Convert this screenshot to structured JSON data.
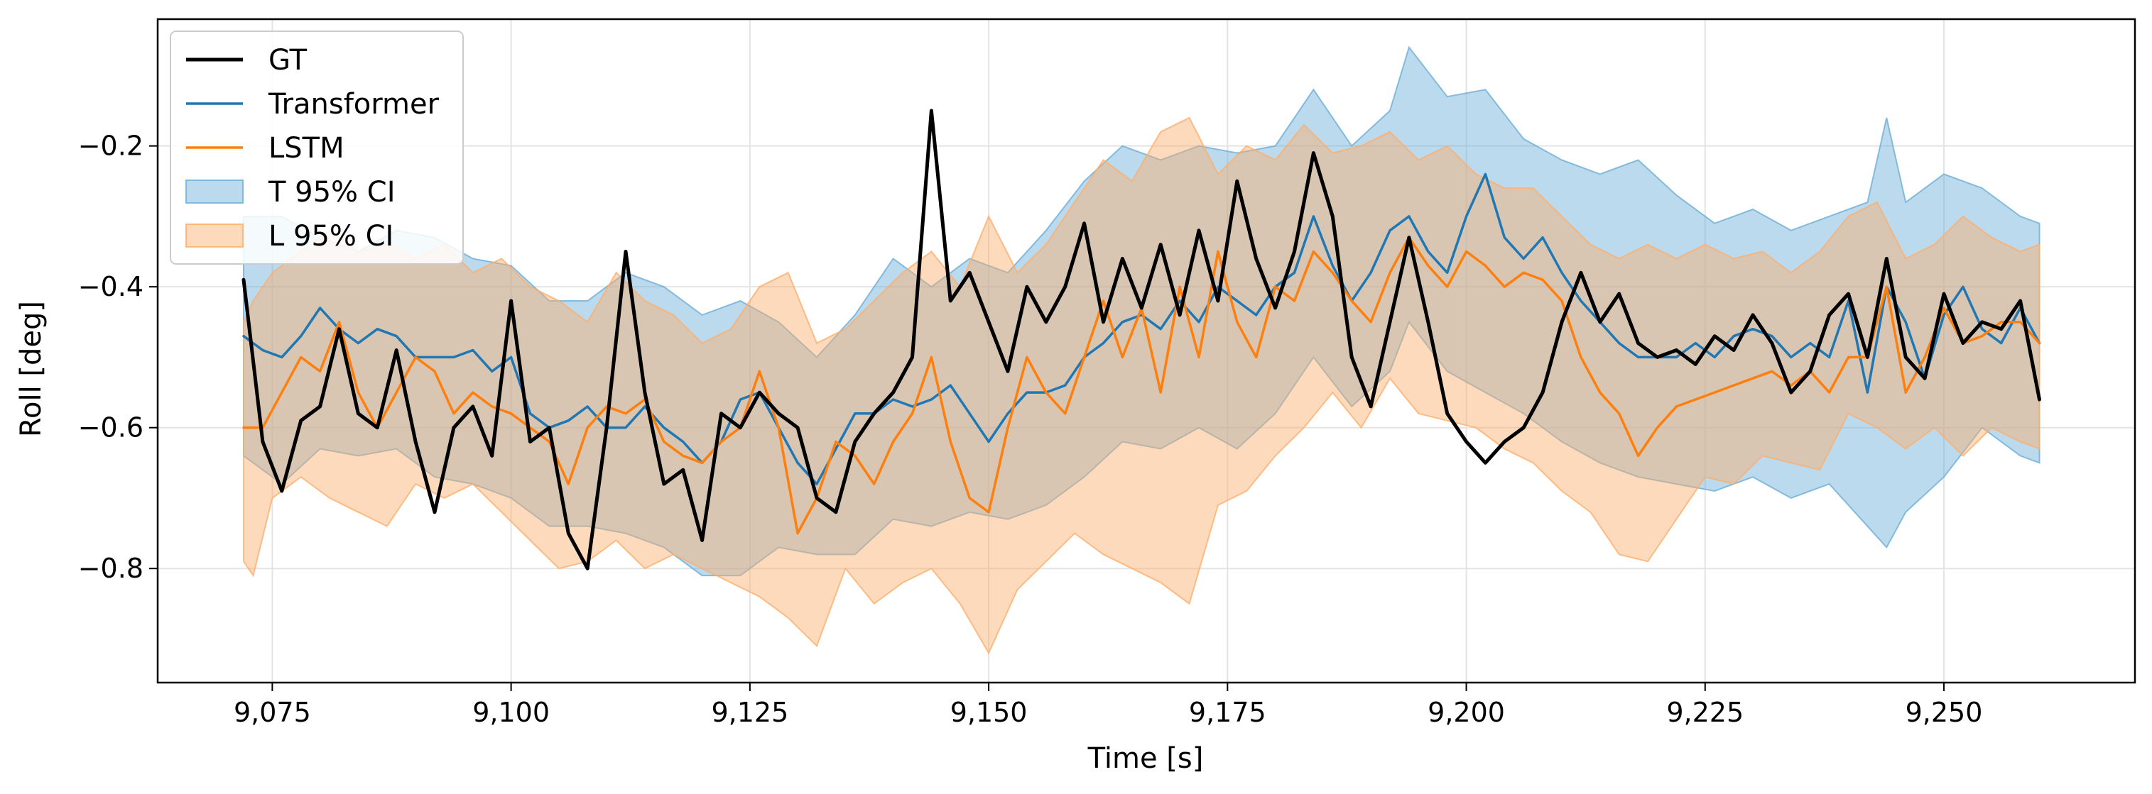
{
  "chart_data": {
    "type": "line",
    "title": "",
    "xlabel": "Time [s]",
    "ylabel": "Roll [deg]",
    "xlim": [
      9063,
      9270
    ],
    "ylim": [
      -0.962,
      -0.02
    ],
    "grid": true,
    "legend_position": "top-left",
    "x_ticks": [
      9075,
      9100,
      9125,
      9150,
      9175,
      9200,
      9225,
      9250
    ],
    "x_tick_labels": [
      "9,075",
      "9,100",
      "9,125",
      "9,150",
      "9,175",
      "9,200",
      "9,225",
      "9,250"
    ],
    "y_ticks": [
      -0.2,
      -0.4,
      -0.6,
      -0.8
    ],
    "y_tick_labels": [
      "−0.2",
      "−0.4",
      "−0.6",
      "−0.8"
    ],
    "colors": {
      "gt": "#000000",
      "transformer": "#1f77b4",
      "lstm": "#ff7f0e",
      "t_band_fill": "#6baed6",
      "l_band_fill": "#fdae6b"
    },
    "legend": [
      {
        "key": "gt",
        "label": "GT",
        "kind": "line"
      },
      {
        "key": "transformer",
        "label": "Transformer",
        "kind": "line"
      },
      {
        "key": "lstm",
        "label": "LSTM",
        "kind": "line"
      },
      {
        "key": "t_band",
        "label": "T 95% CI",
        "kind": "band"
      },
      {
        "key": "l_band",
        "label": "L 95% CI",
        "kind": "band"
      }
    ],
    "series": [
      {
        "name": "GT",
        "key": "gt",
        "x": [
          9072,
          9074,
          9076,
          9078,
          9080,
          9082,
          9084,
          9086,
          9088,
          9090,
          9092,
          9094,
          9096,
          9098,
          9100,
          9102,
          9104,
          9106,
          9108,
          9110,
          9112,
          9114,
          9116,
          9118,
          9120,
          9122,
          9124,
          9126,
          9128,
          9130,
          9132,
          9134,
          9136,
          9138,
          9140,
          9142,
          9144,
          9146,
          9148,
          9150,
          9152,
          9154,
          9156,
          9158,
          9160,
          9162,
          9164,
          9166,
          9168,
          9170,
          9172,
          9174,
          9176,
          9178,
          9180,
          9182,
          9184,
          9186,
          9188,
          9190,
          9192,
          9194,
          9196,
          9198,
          9200,
          9202,
          9204,
          9206,
          9208,
          9210,
          9212,
          9214,
          9216,
          9218,
          9220,
          9222,
          9224,
          9226,
          9228,
          9230,
          9232,
          9234,
          9236,
          9238,
          9240,
          9242,
          9244,
          9246,
          9248,
          9250,
          9252,
          9254,
          9256,
          9258,
          9260
        ],
        "values": [
          -0.39,
          -0.62,
          -0.69,
          -0.59,
          -0.57,
          -0.46,
          -0.58,
          -0.6,
          -0.49,
          -0.62,
          -0.72,
          -0.6,
          -0.57,
          -0.64,
          -0.42,
          -0.62,
          -0.6,
          -0.75,
          -0.8,
          -0.6,
          -0.35,
          -0.55,
          -0.68,
          -0.66,
          -0.76,
          -0.58,
          -0.6,
          -0.55,
          -0.58,
          -0.6,
          -0.7,
          -0.72,
          -0.62,
          -0.58,
          -0.55,
          -0.5,
          -0.15,
          -0.42,
          -0.38,
          -0.45,
          -0.52,
          -0.4,
          -0.45,
          -0.4,
          -0.31,
          -0.45,
          -0.36,
          -0.43,
          -0.34,
          -0.44,
          -0.32,
          -0.42,
          -0.25,
          -0.36,
          -0.43,
          -0.35,
          -0.21,
          -0.3,
          -0.5,
          -0.57,
          -0.45,
          -0.33,
          -0.45,
          -0.58,
          -0.62,
          -0.65,
          -0.62,
          -0.6,
          -0.55,
          -0.45,
          -0.38,
          -0.45,
          -0.41,
          -0.48,
          -0.5,
          -0.49,
          -0.51,
          -0.47,
          -0.49,
          -0.44,
          -0.48,
          -0.55,
          -0.52,
          -0.44,
          -0.41,
          -0.5,
          -0.36,
          -0.5,
          -0.53,
          -0.41,
          -0.48,
          -0.45,
          -0.46,
          -0.42,
          -0.56
        ]
      },
      {
        "name": "Transformer",
        "key": "transformer",
        "x": [
          9072,
          9074,
          9076,
          9078,
          9080,
          9082,
          9084,
          9086,
          9088,
          9090,
          9092,
          9094,
          9096,
          9098,
          9100,
          9102,
          9104,
          9106,
          9108,
          9110,
          9112,
          9114,
          9116,
          9118,
          9120,
          9122,
          9124,
          9126,
          9128,
          9130,
          9132,
          9134,
          9136,
          9138,
          9140,
          9142,
          9144,
          9146,
          9148,
          9150,
          9152,
          9154,
          9156,
          9158,
          9160,
          9162,
          9164,
          9166,
          9168,
          9170,
          9172,
          9174,
          9176,
          9178,
          9180,
          9182,
          9184,
          9186,
          9188,
          9190,
          9192,
          9194,
          9196,
          9198,
          9200,
          9202,
          9204,
          9206,
          9208,
          9210,
          9212,
          9214,
          9216,
          9218,
          9220,
          9222,
          9224,
          9226,
          9228,
          9230,
          9232,
          9234,
          9236,
          9238,
          9240,
          9242,
          9244,
          9246,
          9248,
          9250,
          9252,
          9254,
          9256,
          9258,
          9260
        ],
        "values": [
          -0.47,
          -0.49,
          -0.5,
          -0.47,
          -0.43,
          -0.46,
          -0.48,
          -0.46,
          -0.47,
          -0.5,
          -0.5,
          -0.5,
          -0.49,
          -0.52,
          -0.5,
          -0.58,
          -0.6,
          -0.59,
          -0.57,
          -0.6,
          -0.6,
          -0.57,
          -0.6,
          -0.62,
          -0.65,
          -0.62,
          -0.56,
          -0.55,
          -0.6,
          -0.65,
          -0.68,
          -0.63,
          -0.58,
          -0.58,
          -0.56,
          -0.57,
          -0.56,
          -0.54,
          -0.58,
          -0.62,
          -0.58,
          -0.55,
          -0.55,
          -0.54,
          -0.5,
          -0.48,
          -0.45,
          -0.44,
          -0.46,
          -0.42,
          -0.45,
          -0.4,
          -0.42,
          -0.44,
          -0.4,
          -0.38,
          -0.3,
          -0.37,
          -0.42,
          -0.38,
          -0.32,
          -0.3,
          -0.35,
          -0.38,
          -0.3,
          -0.24,
          -0.33,
          -0.36,
          -0.33,
          -0.38,
          -0.42,
          -0.45,
          -0.48,
          -0.5,
          -0.5,
          -0.5,
          -0.48,
          -0.5,
          -0.47,
          -0.46,
          -0.47,
          -0.5,
          -0.48,
          -0.5,
          -0.42,
          -0.55,
          -0.4,
          -0.45,
          -0.53,
          -0.44,
          -0.4,
          -0.46,
          -0.48,
          -0.43,
          -0.48
        ]
      },
      {
        "name": "LSTM",
        "key": "lstm",
        "x": [
          9072,
          9074,
          9076,
          9078,
          9080,
          9082,
          9084,
          9086,
          9088,
          9090,
          9092,
          9094,
          9096,
          9098,
          9100,
          9102,
          9104,
          9106,
          9108,
          9110,
          9112,
          9114,
          9116,
          9118,
          9120,
          9122,
          9124,
          9126,
          9128,
          9130,
          9132,
          9134,
          9136,
          9138,
          9140,
          9142,
          9144,
          9146,
          9148,
          9150,
          9152,
          9154,
          9156,
          9158,
          9160,
          9162,
          9164,
          9166,
          9168,
          9170,
          9172,
          9174,
          9176,
          9178,
          9180,
          9182,
          9184,
          9186,
          9188,
          9190,
          9192,
          9194,
          9196,
          9198,
          9200,
          9202,
          9204,
          9206,
          9208,
          9210,
          9212,
          9214,
          9216,
          9218,
          9220,
          9222,
          9224,
          9226,
          9228,
          9230,
          9232,
          9234,
          9236,
          9238,
          9240,
          9242,
          9244,
          9246,
          9248,
          9250,
          9252,
          9254,
          9256,
          9258,
          9260
        ],
        "values": [
          -0.6,
          -0.6,
          -0.55,
          -0.5,
          -0.52,
          -0.45,
          -0.55,
          -0.6,
          -0.55,
          -0.5,
          -0.52,
          -0.58,
          -0.55,
          -0.57,
          -0.58,
          -0.6,
          -0.62,
          -0.68,
          -0.6,
          -0.57,
          -0.58,
          -0.56,
          -0.62,
          -0.64,
          -0.65,
          -0.62,
          -0.6,
          -0.52,
          -0.6,
          -0.75,
          -0.7,
          -0.62,
          -0.64,
          -0.68,
          -0.62,
          -0.58,
          -0.5,
          -0.62,
          -0.7,
          -0.72,
          -0.6,
          -0.5,
          -0.55,
          -0.58,
          -0.5,
          -0.42,
          -0.5,
          -0.43,
          -0.55,
          -0.4,
          -0.5,
          -0.35,
          -0.45,
          -0.5,
          -0.4,
          -0.42,
          -0.35,
          -0.38,
          -0.42,
          -0.45,
          -0.38,
          -0.33,
          -0.37,
          -0.4,
          -0.35,
          -0.37,
          -0.4,
          -0.38,
          -0.39,
          -0.42,
          -0.5,
          -0.55,
          -0.58,
          -0.64,
          -0.6,
          -0.57,
          -0.56,
          -0.55,
          -0.54,
          -0.53,
          -0.52,
          -0.54,
          -0.52,
          -0.55,
          -0.5,
          -0.5,
          -0.4,
          -0.55,
          -0.5,
          -0.43,
          -0.48,
          -0.47,
          -0.45,
          -0.45,
          -0.48
        ]
      }
    ],
    "bands": [
      {
        "name": "T 95% CI",
        "key": "t_band",
        "x": [
          9072,
          9076,
          9080,
          9084,
          9088,
          9092,
          9096,
          9100,
          9104,
          9108,
          9112,
          9116,
          9120,
          9124,
          9128,
          9132,
          9136,
          9140,
          9144,
          9148,
          9152,
          9156,
          9160,
          9164,
          9168,
          9172,
          9176,
          9180,
          9184,
          9188,
          9192,
          9194,
          9198,
          9202,
          9206,
          9210,
          9214,
          9218,
          9222,
          9226,
          9230,
          9234,
          9238,
          9242,
          9244,
          9246,
          9250,
          9254,
          9258,
          9260
        ],
        "upper": [
          -0.3,
          -0.3,
          -0.33,
          -0.35,
          -0.32,
          -0.33,
          -0.36,
          -0.37,
          -0.42,
          -0.42,
          -0.38,
          -0.4,
          -0.44,
          -0.42,
          -0.45,
          -0.5,
          -0.44,
          -0.36,
          -0.4,
          -0.36,
          -0.38,
          -0.32,
          -0.25,
          -0.2,
          -0.22,
          -0.2,
          -0.21,
          -0.2,
          -0.12,
          -0.2,
          -0.15,
          -0.06,
          -0.13,
          -0.12,
          -0.19,
          -0.22,
          -0.24,
          -0.22,
          -0.27,
          -0.31,
          -0.29,
          -0.32,
          -0.3,
          -0.28,
          -0.16,
          -0.28,
          -0.24,
          -0.26,
          -0.3,
          -0.31
        ],
        "lower": [
          -0.64,
          -0.68,
          -0.63,
          -0.64,
          -0.63,
          -0.67,
          -0.68,
          -0.7,
          -0.74,
          -0.74,
          -0.75,
          -0.77,
          -0.81,
          -0.81,
          -0.77,
          -0.78,
          -0.78,
          -0.73,
          -0.74,
          -0.72,
          -0.73,
          -0.71,
          -0.67,
          -0.62,
          -0.63,
          -0.6,
          -0.63,
          -0.58,
          -0.5,
          -0.57,
          -0.52,
          -0.45,
          -0.52,
          -0.55,
          -0.58,
          -0.62,
          -0.65,
          -0.67,
          -0.68,
          -0.69,
          -0.67,
          -0.7,
          -0.68,
          -0.74,
          -0.77,
          -0.72,
          -0.67,
          -0.6,
          -0.64,
          -0.65
        ]
      },
      {
        "name": "L 95% CI",
        "key": "l_band",
        "x": [
          9072,
          9073,
          9075,
          9078,
          9081,
          9084,
          9087,
          9090,
          9093,
          9096,
          9099,
          9102,
          9105,
          9108,
          9111,
          9114,
          9117,
          9120,
          9123,
          9126,
          9129,
          9132,
          9135,
          9138,
          9141,
          9144,
          9147,
          9150,
          9153,
          9156,
          9159,
          9162,
          9165,
          9168,
          9171,
          9174,
          9177,
          9180,
          9183,
          9186,
          9189,
          9192,
          9195,
          9198,
          9201,
          9204,
          9207,
          9210,
          9213,
          9216,
          9219,
          9222,
          9225,
          9228,
          9231,
          9234,
          9237,
          9240,
          9243,
          9246,
          9249,
          9252,
          9255,
          9258,
          9260
        ],
        "upper": [
          -0.45,
          -0.42,
          -0.38,
          -0.35,
          -0.32,
          -0.35,
          -0.34,
          -0.36,
          -0.34,
          -0.38,
          -0.36,
          -0.4,
          -0.42,
          -0.45,
          -0.38,
          -0.42,
          -0.44,
          -0.48,
          -0.46,
          -0.4,
          -0.38,
          -0.48,
          -0.46,
          -0.42,
          -0.38,
          -0.35,
          -0.4,
          -0.3,
          -0.38,
          -0.34,
          -0.28,
          -0.22,
          -0.25,
          -0.18,
          -0.16,
          -0.24,
          -0.2,
          -0.22,
          -0.17,
          -0.21,
          -0.2,
          -0.18,
          -0.22,
          -0.2,
          -0.24,
          -0.26,
          -0.26,
          -0.3,
          -0.34,
          -0.36,
          -0.34,
          -0.36,
          -0.34,
          -0.36,
          -0.35,
          -0.38,
          -0.35,
          -0.3,
          -0.28,
          -0.36,
          -0.34,
          -0.3,
          -0.33,
          -0.35,
          -0.34
        ],
        "lower": [
          -0.79,
          -0.81,
          -0.7,
          -0.67,
          -0.7,
          -0.72,
          -0.74,
          -0.68,
          -0.7,
          -0.68,
          -0.72,
          -0.76,
          -0.8,
          -0.79,
          -0.76,
          -0.8,
          -0.78,
          -0.8,
          -0.82,
          -0.84,
          -0.87,
          -0.91,
          -0.8,
          -0.85,
          -0.82,
          -0.8,
          -0.85,
          -0.92,
          -0.83,
          -0.79,
          -0.75,
          -0.78,
          -0.8,
          -0.82,
          -0.85,
          -0.71,
          -0.69,
          -0.64,
          -0.6,
          -0.55,
          -0.6,
          -0.53,
          -0.58,
          -0.59,
          -0.6,
          -0.63,
          -0.65,
          -0.69,
          -0.72,
          -0.78,
          -0.79,
          -0.73,
          -0.67,
          -0.68,
          -0.64,
          -0.65,
          -0.66,
          -0.58,
          -0.6,
          -0.63,
          -0.6,
          -0.64,
          -0.6,
          -0.62,
          -0.63
        ]
      }
    ]
  }
}
